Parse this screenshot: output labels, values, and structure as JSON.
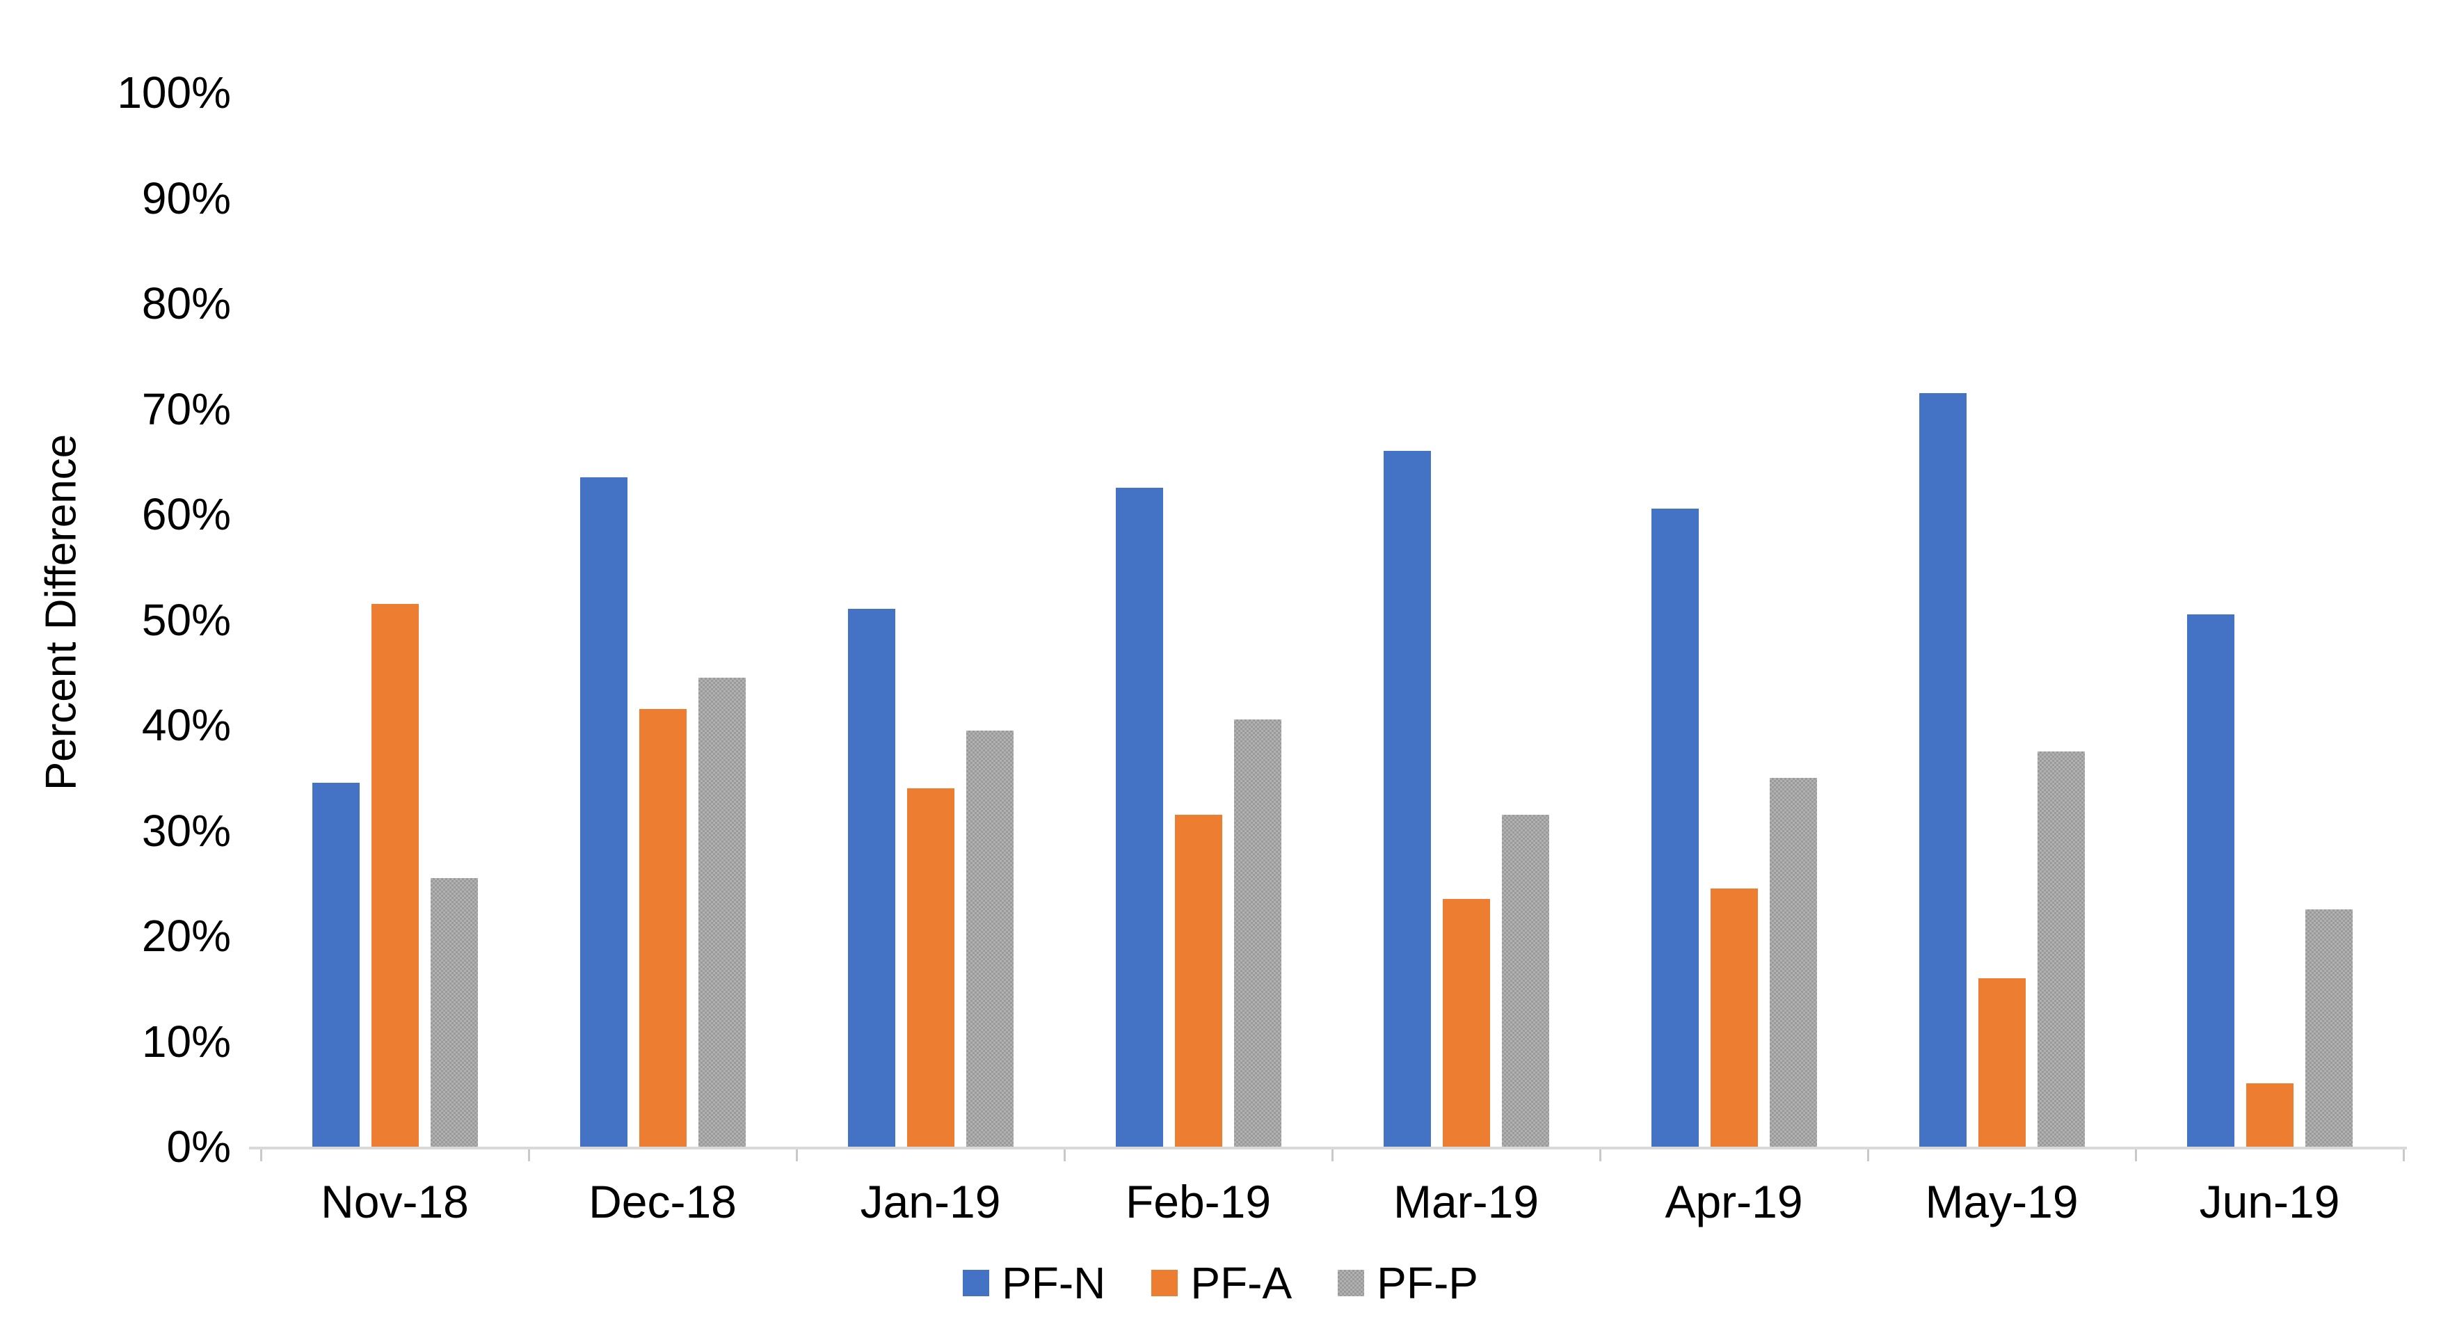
{
  "chart_data": {
    "type": "bar",
    "title": "",
    "xlabel": "",
    "ylabel": "Percent Difference",
    "ylim": [
      0,
      100
    ],
    "grid": false,
    "legend_position": "bottom",
    "yticks": [
      {
        "value": 0,
        "label": "0%"
      },
      {
        "value": 10,
        "label": "10%"
      },
      {
        "value": 20,
        "label": "20%"
      },
      {
        "value": 30,
        "label": "30%"
      },
      {
        "value": 40,
        "label": "40%"
      },
      {
        "value": 50,
        "label": "50%"
      },
      {
        "value": 60,
        "label": "60%"
      },
      {
        "value": 70,
        "label": "70%"
      },
      {
        "value": 80,
        "label": "80%"
      },
      {
        "value": 90,
        "label": "90%"
      },
      {
        "value": 100,
        "label": "100%"
      }
    ],
    "categories": [
      "Nov-18",
      "Dec-18",
      "Jan-19",
      "Feb-19",
      "Mar-19",
      "Apr-19",
      "May-19",
      "Jun-19"
    ],
    "series": [
      {
        "name": "PF-N",
        "color": "#4472c4",
        "pattern": false,
        "values": [
          34.5,
          63.5,
          51,
          62.5,
          66,
          60.5,
          71.5,
          50.5
        ]
      },
      {
        "name": "PF-A",
        "color": "#ed7d31",
        "pattern": false,
        "values": [
          51.5,
          41.5,
          34,
          31.5,
          23.5,
          24.5,
          16,
          6
        ]
      },
      {
        "name": "PF-P",
        "color": "#a6a6a6",
        "pattern": true,
        "values": [
          25.5,
          44.5,
          39.5,
          40.5,
          31.5,
          35,
          37.5,
          22.5
        ]
      }
    ],
    "axis_color": "#d9d9d9",
    "tick_color": "#c9c9c9",
    "text_color": "#000000"
  }
}
